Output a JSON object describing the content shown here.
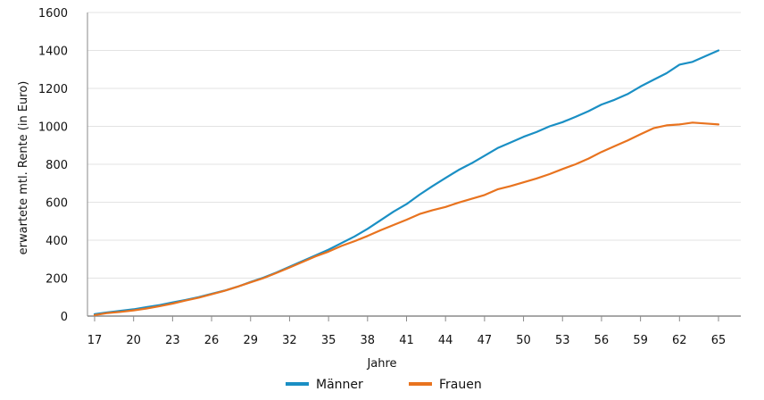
{
  "chart_data": {
    "type": "line",
    "title": "",
    "xlabel": "Jahre",
    "ylabel": "erwartete mtl. Rente (in Euro)",
    "xlim": [
      17,
      65
    ],
    "ylim": [
      0,
      1600
    ],
    "x_ticks": [
      17,
      20,
      23,
      26,
      29,
      32,
      35,
      38,
      41,
      44,
      47,
      50,
      53,
      56,
      59,
      62,
      65
    ],
    "y_ticks": [
      0,
      200,
      400,
      600,
      800,
      1000,
      1200,
      1400,
      1600
    ],
    "grid": "horizontal",
    "legend_position": "bottom",
    "x": [
      17,
      18,
      19,
      20,
      21,
      22,
      23,
      24,
      25,
      26,
      27,
      28,
      29,
      30,
      31,
      32,
      33,
      34,
      35,
      36,
      37,
      38,
      39,
      40,
      41,
      42,
      43,
      44,
      45,
      46,
      47,
      48,
      49,
      50,
      51,
      52,
      53,
      54,
      55,
      56,
      57,
      58,
      59,
      60,
      61,
      62,
      63,
      64,
      65
    ],
    "series": [
      {
        "name": "Männer",
        "color": "#1a8fc4",
        "values": [
          10,
          20,
          28,
          36,
          47,
          58,
          72,
          85,
          100,
          117,
          134,
          155,
          180,
          203,
          230,
          260,
          290,
          320,
          350,
          385,
          420,
          460,
          505,
          550,
          590,
          640,
          685,
          728,
          770,
          805,
          845,
          885,
          915,
          945,
          970,
          1000,
          1022,
          1050,
          1080,
          1115,
          1140,
          1170,
          1210,
          1245,
          1280,
          1325,
          1340,
          1370,
          1400
        ]
      },
      {
        "name": "Frauen",
        "color": "#e8731f",
        "values": [
          5,
          16,
          22,
          30,
          40,
          52,
          66,
          82,
          97,
          115,
          133,
          155,
          178,
          200,
          228,
          256,
          285,
          315,
          340,
          370,
          395,
          422,
          452,
          480,
          508,
          538,
          558,
          575,
          598,
          618,
          638,
          668,
          685,
          705,
          725,
          748,
          775,
          800,
          830,
          865,
          895,
          925,
          958,
          990,
          1005,
          1010,
          1020,
          1015,
          1010
        ]
      }
    ]
  }
}
